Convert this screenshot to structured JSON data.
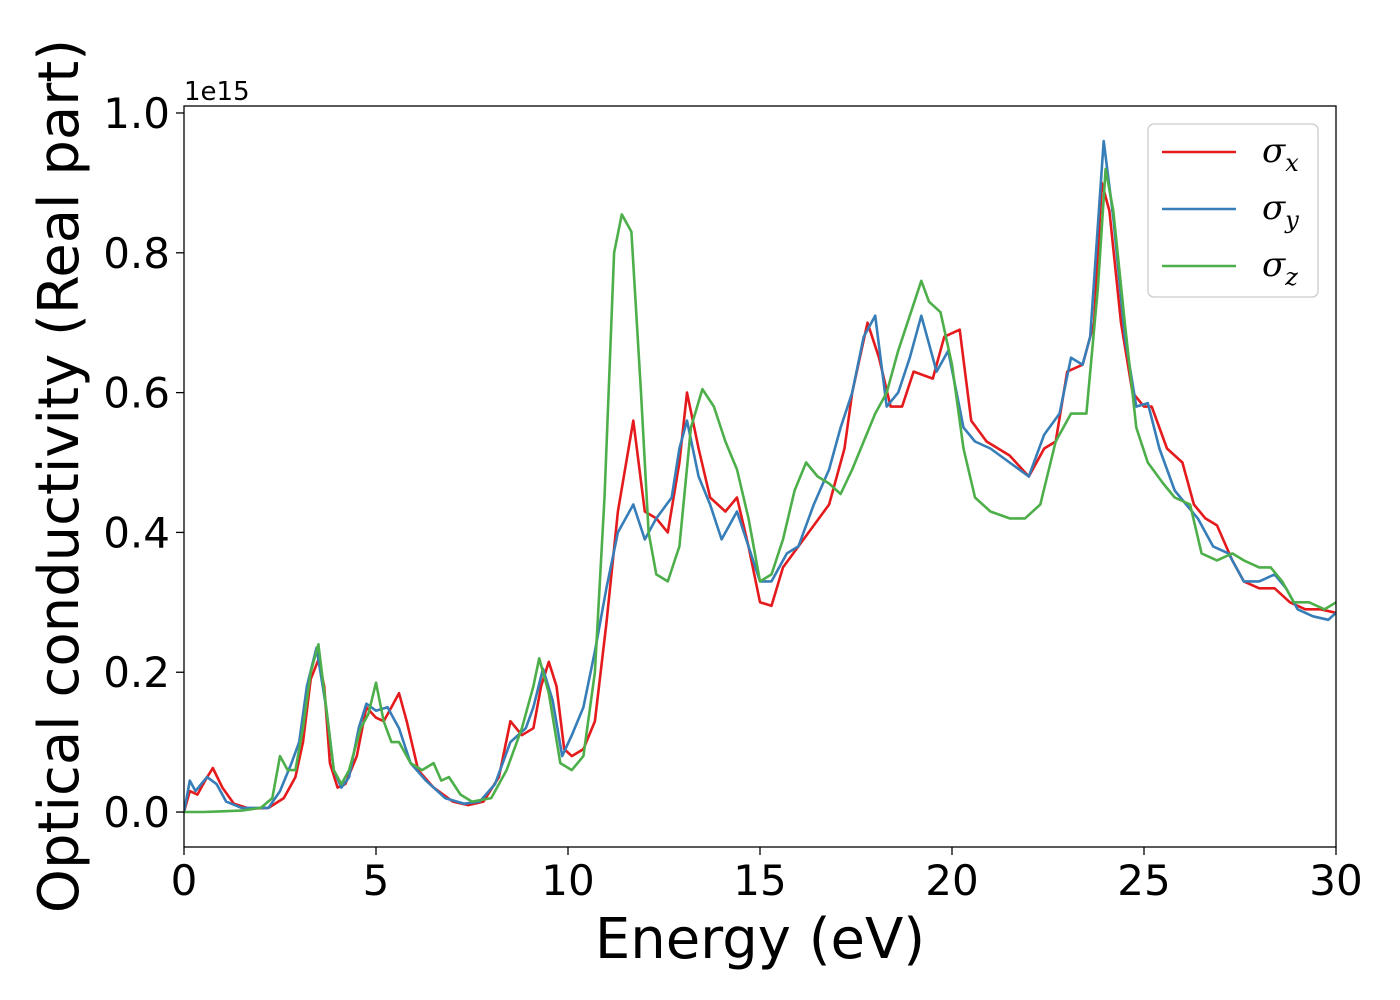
{
  "chart_data": {
    "type": "line",
    "xlabel": "Energy (eV)",
    "ylabel": "Optical conductivity (Real part)",
    "y_offset_text": "1e15",
    "xlim": [
      0,
      30
    ],
    "ylim": [
      -0.05,
      1.01
    ],
    "x_ticks": [
      0,
      5,
      10,
      15,
      20,
      25,
      30
    ],
    "x_tick_labels": [
      "0",
      "5",
      "10",
      "15",
      "20",
      "25",
      "30"
    ],
    "y_ticks": [
      0.0,
      0.2,
      0.4,
      0.6,
      0.8,
      1.0
    ],
    "y_tick_labels": [
      "0.0",
      "0.2",
      "0.4",
      "0.6",
      "0.8",
      "1.0"
    ],
    "grid": false,
    "legend_position": "top-right",
    "series": [
      {
        "name": "σx",
        "symbol": "σ",
        "subscript": "x",
        "color": "#e41a1c",
        "points": [
          [
            0,
            0.0
          ],
          [
            0.15,
            0.03
          ],
          [
            0.35,
            0.025
          ],
          [
            0.55,
            0.045
          ],
          [
            0.75,
            0.063
          ],
          [
            1.0,
            0.035
          ],
          [
            1.3,
            0.012
          ],
          [
            1.7,
            0.005
          ],
          [
            2.2,
            0.006
          ],
          [
            2.6,
            0.02
          ],
          [
            2.9,
            0.05
          ],
          [
            3.1,
            0.1
          ],
          [
            3.3,
            0.19
          ],
          [
            3.5,
            0.218
          ],
          [
            3.65,
            0.18
          ],
          [
            3.8,
            0.07
          ],
          [
            4.0,
            0.035
          ],
          [
            4.2,
            0.04
          ],
          [
            4.5,
            0.08
          ],
          [
            4.75,
            0.15
          ],
          [
            5.0,
            0.135
          ],
          [
            5.2,
            0.13
          ],
          [
            5.4,
            0.15
          ],
          [
            5.6,
            0.17
          ],
          [
            5.8,
            0.13
          ],
          [
            6.1,
            0.06
          ],
          [
            6.5,
            0.035
          ],
          [
            7.0,
            0.015
          ],
          [
            7.4,
            0.01
          ],
          [
            7.8,
            0.015
          ],
          [
            8.2,
            0.05
          ],
          [
            8.5,
            0.13
          ],
          [
            8.8,
            0.11
          ],
          [
            9.1,
            0.12
          ],
          [
            9.3,
            0.18
          ],
          [
            9.5,
            0.215
          ],
          [
            9.7,
            0.18
          ],
          [
            9.9,
            0.09
          ],
          [
            10.1,
            0.08
          ],
          [
            10.4,
            0.09
          ],
          [
            10.7,
            0.13
          ],
          [
            11.0,
            0.27
          ],
          [
            11.3,
            0.43
          ],
          [
            11.7,
            0.56
          ],
          [
            12.0,
            0.43
          ],
          [
            12.3,
            0.42
          ],
          [
            12.6,
            0.4
          ],
          [
            12.9,
            0.5
          ],
          [
            13.1,
            0.6
          ],
          [
            13.4,
            0.52
          ],
          [
            13.7,
            0.45
          ],
          [
            14.1,
            0.43
          ],
          [
            14.4,
            0.45
          ],
          [
            14.7,
            0.38
          ],
          [
            15.0,
            0.3
          ],
          [
            15.3,
            0.295
          ],
          [
            15.6,
            0.35
          ],
          [
            16.0,
            0.38
          ],
          [
            16.4,
            0.41
          ],
          [
            16.8,
            0.44
          ],
          [
            17.2,
            0.52
          ],
          [
            17.4,
            0.6
          ],
          [
            17.8,
            0.7
          ],
          [
            18.1,
            0.65
          ],
          [
            18.4,
            0.58
          ],
          [
            18.7,
            0.58
          ],
          [
            19.0,
            0.63
          ],
          [
            19.5,
            0.62
          ],
          [
            19.8,
            0.68
          ],
          [
            20.2,
            0.69
          ],
          [
            20.5,
            0.56
          ],
          [
            20.9,
            0.53
          ],
          [
            21.5,
            0.51
          ],
          [
            22.0,
            0.48
          ],
          [
            22.4,
            0.52
          ],
          [
            22.7,
            0.53
          ],
          [
            23.0,
            0.63
          ],
          [
            23.4,
            0.64
          ],
          [
            23.7,
            0.7
          ],
          [
            23.9,
            0.9
          ],
          [
            24.1,
            0.86
          ],
          [
            24.4,
            0.7
          ],
          [
            24.7,
            0.6
          ],
          [
            25.0,
            0.58
          ],
          [
            25.2,
            0.58
          ],
          [
            25.6,
            0.52
          ],
          [
            26.0,
            0.5
          ],
          [
            26.3,
            0.44
          ],
          [
            26.6,
            0.42
          ],
          [
            26.9,
            0.41
          ],
          [
            27.3,
            0.36
          ],
          [
            27.6,
            0.33
          ],
          [
            28.0,
            0.32
          ],
          [
            28.4,
            0.32
          ],
          [
            28.8,
            0.3
          ],
          [
            29.2,
            0.29
          ],
          [
            29.6,
            0.29
          ],
          [
            30.0,
            0.285
          ]
        ]
      },
      {
        "name": "σy",
        "symbol": "σ",
        "subscript": "y",
        "color": "#377eb8",
        "points": [
          [
            0,
            0.0
          ],
          [
            0.15,
            0.045
          ],
          [
            0.3,
            0.03
          ],
          [
            0.6,
            0.05
          ],
          [
            0.85,
            0.04
          ],
          [
            1.1,
            0.015
          ],
          [
            1.5,
            0.006
          ],
          [
            2.2,
            0.006
          ],
          [
            2.5,
            0.03
          ],
          [
            2.8,
            0.07
          ],
          [
            3.0,
            0.1
          ],
          [
            3.2,
            0.18
          ],
          [
            3.45,
            0.235
          ],
          [
            3.7,
            0.15
          ],
          [
            3.9,
            0.06
          ],
          [
            4.1,
            0.035
          ],
          [
            4.3,
            0.05
          ],
          [
            4.55,
            0.12
          ],
          [
            4.75,
            0.155
          ],
          [
            5.0,
            0.145
          ],
          [
            5.3,
            0.15
          ],
          [
            5.6,
            0.12
          ],
          [
            5.9,
            0.07
          ],
          [
            6.3,
            0.045
          ],
          [
            6.8,
            0.02
          ],
          [
            7.3,
            0.012
          ],
          [
            7.7,
            0.015
          ],
          [
            8.1,
            0.04
          ],
          [
            8.5,
            0.1
          ],
          [
            8.9,
            0.12
          ],
          [
            9.1,
            0.15
          ],
          [
            9.35,
            0.205
          ],
          [
            9.6,
            0.16
          ],
          [
            9.85,
            0.08
          ],
          [
            10.1,
            0.11
          ],
          [
            10.4,
            0.15
          ],
          [
            10.7,
            0.23
          ],
          [
            11.0,
            0.32
          ],
          [
            11.3,
            0.4
          ],
          [
            11.7,
            0.44
          ],
          [
            12.0,
            0.39
          ],
          [
            12.3,
            0.42
          ],
          [
            12.7,
            0.45
          ],
          [
            12.9,
            0.52
          ],
          [
            13.1,
            0.56
          ],
          [
            13.4,
            0.48
          ],
          [
            13.7,
            0.44
          ],
          [
            14.0,
            0.39
          ],
          [
            14.4,
            0.43
          ],
          [
            14.7,
            0.38
          ],
          [
            15.0,
            0.33
          ],
          [
            15.3,
            0.33
          ],
          [
            15.7,
            0.37
          ],
          [
            16.0,
            0.38
          ],
          [
            16.4,
            0.44
          ],
          [
            16.8,
            0.49
          ],
          [
            17.1,
            0.55
          ],
          [
            17.4,
            0.6
          ],
          [
            17.7,
            0.68
          ],
          [
            18.0,
            0.71
          ],
          [
            18.3,
            0.58
          ],
          [
            18.6,
            0.6
          ],
          [
            18.9,
            0.65
          ],
          [
            19.2,
            0.71
          ],
          [
            19.6,
            0.63
          ],
          [
            19.9,
            0.66
          ],
          [
            20.3,
            0.55
          ],
          [
            20.6,
            0.53
          ],
          [
            21.0,
            0.52
          ],
          [
            21.5,
            0.5
          ],
          [
            22.0,
            0.48
          ],
          [
            22.4,
            0.54
          ],
          [
            22.8,
            0.57
          ],
          [
            23.1,
            0.65
          ],
          [
            23.4,
            0.64
          ],
          [
            23.6,
            0.68
          ],
          [
            23.95,
            0.96
          ],
          [
            24.2,
            0.85
          ],
          [
            24.5,
            0.68
          ],
          [
            24.8,
            0.58
          ],
          [
            25.1,
            0.585
          ],
          [
            25.4,
            0.52
          ],
          [
            25.8,
            0.46
          ],
          [
            26.1,
            0.44
          ],
          [
            26.4,
            0.42
          ],
          [
            26.8,
            0.38
          ],
          [
            27.2,
            0.37
          ],
          [
            27.6,
            0.33
          ],
          [
            28.0,
            0.33
          ],
          [
            28.4,
            0.34
          ],
          [
            28.7,
            0.32
          ],
          [
            29.0,
            0.29
          ],
          [
            29.4,
            0.28
          ],
          [
            29.8,
            0.275
          ],
          [
            30.0,
            0.285
          ]
        ]
      },
      {
        "name": "σz",
        "symbol": "σ",
        "subscript": "z",
        "color": "#4daf4a",
        "points": [
          [
            0,
            0.0
          ],
          [
            0.5,
            0.0
          ],
          [
            1.0,
            0.001
          ],
          [
            1.5,
            0.002
          ],
          [
            2.0,
            0.006
          ],
          [
            2.3,
            0.02
          ],
          [
            2.5,
            0.08
          ],
          [
            2.7,
            0.06
          ],
          [
            2.9,
            0.06
          ],
          [
            3.1,
            0.12
          ],
          [
            3.3,
            0.2
          ],
          [
            3.5,
            0.24
          ],
          [
            3.7,
            0.15
          ],
          [
            3.9,
            0.06
          ],
          [
            4.1,
            0.04
          ],
          [
            4.3,
            0.06
          ],
          [
            4.6,
            0.12
          ],
          [
            4.8,
            0.14
          ],
          [
            5.0,
            0.185
          ],
          [
            5.2,
            0.13
          ],
          [
            5.4,
            0.1
          ],
          [
            5.6,
            0.1
          ],
          [
            5.9,
            0.07
          ],
          [
            6.2,
            0.06
          ],
          [
            6.5,
            0.07
          ],
          [
            6.7,
            0.045
          ],
          [
            6.9,
            0.05
          ],
          [
            7.2,
            0.025
          ],
          [
            7.5,
            0.015
          ],
          [
            8.0,
            0.02
          ],
          [
            8.4,
            0.06
          ],
          [
            8.8,
            0.12
          ],
          [
            9.1,
            0.18
          ],
          [
            9.25,
            0.22
          ],
          [
            9.5,
            0.17
          ],
          [
            9.8,
            0.07
          ],
          [
            10.1,
            0.06
          ],
          [
            10.4,
            0.08
          ],
          [
            10.7,
            0.2
          ],
          [
            10.95,
            0.45
          ],
          [
            11.2,
            0.8
          ],
          [
            11.4,
            0.855
          ],
          [
            11.65,
            0.83
          ],
          [
            11.9,
            0.6
          ],
          [
            12.1,
            0.4
          ],
          [
            12.3,
            0.34
          ],
          [
            12.6,
            0.33
          ],
          [
            12.9,
            0.38
          ],
          [
            13.2,
            0.55
          ],
          [
            13.5,
            0.605
          ],
          [
            13.8,
            0.58
          ],
          [
            14.1,
            0.53
          ],
          [
            14.4,
            0.49
          ],
          [
            14.7,
            0.42
          ],
          [
            15.0,
            0.33
          ],
          [
            15.3,
            0.34
          ],
          [
            15.6,
            0.39
          ],
          [
            15.9,
            0.46
          ],
          [
            16.2,
            0.5
          ],
          [
            16.5,
            0.48
          ],
          [
            16.8,
            0.47
          ],
          [
            17.1,
            0.455
          ],
          [
            17.4,
            0.49
          ],
          [
            17.7,
            0.53
          ],
          [
            18.0,
            0.57
          ],
          [
            18.3,
            0.6
          ],
          [
            18.6,
            0.66
          ],
          [
            18.9,
            0.71
          ],
          [
            19.2,
            0.76
          ],
          [
            19.4,
            0.73
          ],
          [
            19.7,
            0.715
          ],
          [
            20.0,
            0.64
          ],
          [
            20.3,
            0.52
          ],
          [
            20.6,
            0.45
          ],
          [
            21.0,
            0.43
          ],
          [
            21.5,
            0.42
          ],
          [
            21.9,
            0.42
          ],
          [
            22.3,
            0.44
          ],
          [
            22.7,
            0.53
          ],
          [
            23.1,
            0.57
          ],
          [
            23.5,
            0.57
          ],
          [
            23.8,
            0.75
          ],
          [
            24.0,
            0.92
          ],
          [
            24.2,
            0.86
          ],
          [
            24.5,
            0.7
          ],
          [
            24.8,
            0.55
          ],
          [
            25.1,
            0.5
          ],
          [
            25.5,
            0.47
          ],
          [
            25.8,
            0.45
          ],
          [
            26.2,
            0.44
          ],
          [
            26.5,
            0.37
          ],
          [
            26.9,
            0.36
          ],
          [
            27.3,
            0.37
          ],
          [
            27.6,
            0.36
          ],
          [
            28.0,
            0.35
          ],
          [
            28.3,
            0.35
          ],
          [
            28.6,
            0.33
          ],
          [
            28.9,
            0.3
          ],
          [
            29.3,
            0.3
          ],
          [
            29.7,
            0.29
          ],
          [
            30.0,
            0.3
          ]
        ]
      }
    ]
  }
}
